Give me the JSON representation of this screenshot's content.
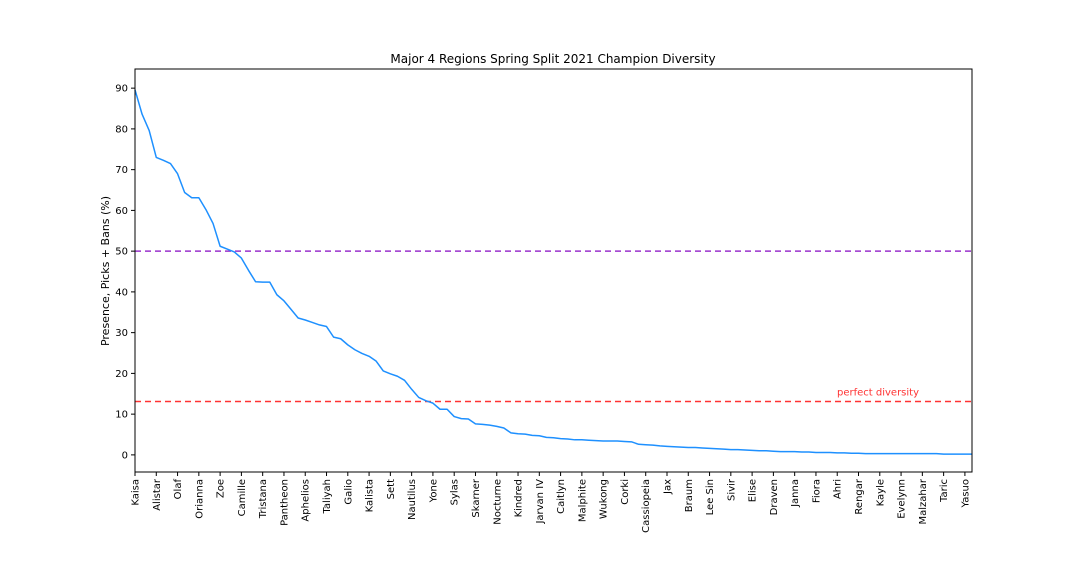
{
  "chart_data": {
    "type": "line",
    "title": "Major 4 Regions Spring Split 2021 Champion Diversity",
    "xlabel": "",
    "ylabel": "Presence, Picks + Bans (%)",
    "ylim": [
      -4.2,
      94.7
    ],
    "yticks": [
      0,
      10,
      20,
      30,
      40,
      50,
      60,
      70,
      80,
      90
    ],
    "grid": false,
    "legend": "none",
    "tick_labels": [
      "Kaisa",
      "Alistar",
      "Olaf",
      "Orianna",
      "Zoe",
      "Camille",
      "Tristana",
      "Pantheon",
      "Aphelios",
      "Taliyah",
      "Galio",
      "Kalista",
      "Sett",
      "Nautilus",
      "Yone",
      "Sylas",
      "Skarner",
      "Nocturne",
      "Kindred",
      "Jarvan IV",
      "Caitlyn",
      "Malphite",
      "Wukong",
      "Corki",
      "Cassiopeia",
      "Jax",
      "Braum",
      "Lee Sin",
      "Sivir",
      "Elise",
      "Draven",
      "Janna",
      "Fiora",
      "Ahri",
      "Rengar",
      "Kayle",
      "Evelynn",
      "Malzahar",
      "Taric",
      "Yasuo"
    ],
    "tick_step": 3,
    "series": [
      {
        "color": "#1e90ff",
        "values": [
          89.6,
          83.6,
          79.6,
          73.0,
          72.3,
          71.5,
          69.0,
          64.4,
          63.1,
          63.1,
          60.2,
          56.8,
          51.2,
          50.5,
          49.8,
          48.3,
          45.3,
          42.5,
          42.4,
          42.4,
          39.3,
          37.8,
          35.7,
          33.6,
          33.1,
          32.5,
          31.9,
          31.5,
          28.9,
          28.5,
          27.0,
          25.8,
          24.9,
          24.2,
          23.0,
          20.6,
          19.9,
          19.3,
          18.3,
          16.1,
          14.1,
          13.3,
          12.7,
          11.2,
          11.2,
          9.4,
          8.9,
          8.8,
          7.6,
          7.5,
          7.3,
          7.0,
          6.6,
          5.4,
          5.2,
          5.1,
          4.8,
          4.7,
          4.3,
          4.2,
          4.0,
          3.9,
          3.7,
          3.7,
          3.6,
          3.5,
          3.4,
          3.4,
          3.4,
          3.3,
          3.2,
          2.6,
          2.5,
          2.4,
          2.2,
          2.1,
          2.0,
          1.9,
          1.8,
          1.8,
          1.7,
          1.6,
          1.5,
          1.4,
          1.3,
          1.3,
          1.2,
          1.1,
          1.0,
          1.0,
          0.9,
          0.8,
          0.8,
          0.8,
          0.7,
          0.7,
          0.6,
          0.6,
          0.6,
          0.5,
          0.5,
          0.4,
          0.4,
          0.3,
          0.3,
          0.3,
          0.3,
          0.3,
          0.3,
          0.3,
          0.3,
          0.3,
          0.3,
          0.3,
          0.2,
          0.2,
          0.2,
          0.2,
          0.2
        ]
      }
    ],
    "reference_lines": [
      {
        "y": 50,
        "color": "#9932cc",
        "style": "dashed",
        "label": ""
      },
      {
        "y": 13.1,
        "color": "#ff3333",
        "style": "dashed",
        "label": "perfect diversity"
      }
    ]
  }
}
